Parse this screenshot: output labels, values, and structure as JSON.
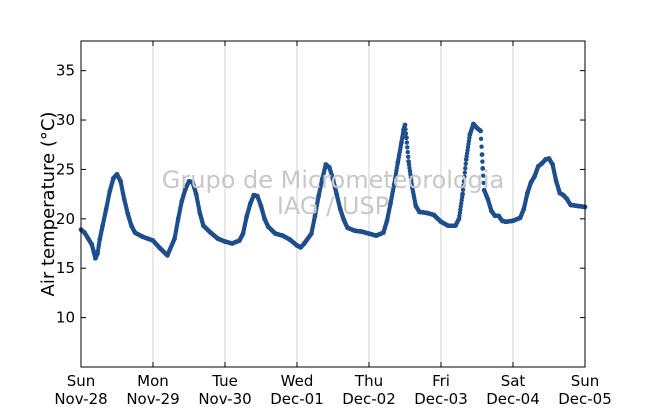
{
  "chart_data": {
    "type": "scatter",
    "title": "",
    "xlabel": "",
    "ylabel": "Air temperature (°C)",
    "ylim": [
      5,
      38
    ],
    "yticks": [
      10,
      15,
      20,
      25,
      30,
      35
    ],
    "xlim_days": [
      0,
      7
    ],
    "xtick_labels": [
      {
        "day": "Sun",
        "date": "Nov-28"
      },
      {
        "day": "Mon",
        "date": "Nov-29"
      },
      {
        "day": "Tue",
        "date": "Nov-30"
      },
      {
        "day": "Wed",
        "date": "Dec-01"
      },
      {
        "day": "Thu",
        "date": "Dec-02"
      },
      {
        "day": "Fri",
        "date": "Dec-03"
      },
      {
        "day": "Sat",
        "date": "Dec-04"
      },
      {
        "day": "Sun",
        "date": "Dec-05"
      }
    ],
    "vertical_grid": true,
    "horizontal_grid": false,
    "marker_color": "#1f4e8c",
    "series": [
      {
        "points": [
          [
            0.0,
            18.9
          ],
          [
            0.05,
            18.6
          ],
          [
            0.1,
            18.0
          ],
          [
            0.15,
            17.4
          ],
          [
            0.18,
            16.6
          ],
          [
            0.2,
            16.0
          ],
          [
            0.23,
            16.5
          ],
          [
            0.26,
            17.9
          ],
          [
            0.3,
            19.3
          ],
          [
            0.35,
            21.0
          ],
          [
            0.4,
            22.8
          ],
          [
            0.45,
            24.1
          ],
          [
            0.5,
            24.5
          ],
          [
            0.55,
            23.8
          ],
          [
            0.6,
            22.0
          ],
          [
            0.65,
            20.5
          ],
          [
            0.7,
            19.3
          ],
          [
            0.75,
            18.6
          ],
          [
            0.85,
            18.2
          ],
          [
            1.0,
            17.8
          ],
          [
            1.1,
            17.0
          ],
          [
            1.2,
            16.3
          ],
          [
            1.3,
            18.0
          ],
          [
            1.35,
            20.0
          ],
          [
            1.4,
            21.8
          ],
          [
            1.45,
            23.0
          ],
          [
            1.5,
            23.8
          ],
          [
            1.55,
            23.7
          ],
          [
            1.6,
            22.5
          ],
          [
            1.65,
            20.6
          ],
          [
            1.7,
            19.3
          ],
          [
            1.8,
            18.6
          ],
          [
            1.9,
            18.0
          ],
          [
            2.0,
            17.7
          ],
          [
            2.1,
            17.5
          ],
          [
            2.2,
            17.8
          ],
          [
            2.25,
            18.5
          ],
          [
            2.3,
            20.2
          ],
          [
            2.35,
            21.5
          ],
          [
            2.4,
            22.4
          ],
          [
            2.45,
            22.3
          ],
          [
            2.5,
            21.3
          ],
          [
            2.55,
            20.0
          ],
          [
            2.6,
            19.2
          ],
          [
            2.7,
            18.5
          ],
          [
            2.8,
            18.3
          ],
          [
            2.9,
            17.9
          ],
          [
            3.0,
            17.3
          ],
          [
            3.05,
            17.1
          ],
          [
            3.1,
            17.5
          ],
          [
            3.2,
            18.5
          ],
          [
            3.25,
            20.3
          ],
          [
            3.3,
            22.3
          ],
          [
            3.35,
            24.0
          ],
          [
            3.4,
            25.5
          ],
          [
            3.45,
            25.2
          ],
          [
            3.5,
            24.0
          ],
          [
            3.55,
            22.5
          ],
          [
            3.6,
            21.0
          ],
          [
            3.65,
            19.9
          ],
          [
            3.7,
            19.1
          ],
          [
            3.8,
            18.8
          ],
          [
            3.9,
            18.7
          ],
          [
            4.0,
            18.5
          ],
          [
            4.1,
            18.3
          ],
          [
            4.2,
            18.6
          ],
          [
            4.25,
            19.8
          ],
          [
            4.3,
            21.6
          ],
          [
            4.35,
            23.5
          ],
          [
            4.4,
            25.7
          ],
          [
            4.45,
            27.7
          ],
          [
            4.48,
            29.0
          ],
          [
            4.5,
            29.5
          ],
          [
            4.52,
            28.2
          ],
          [
            4.55,
            25.8
          ],
          [
            4.6,
            23.2
          ],
          [
            4.65,
            21.3
          ],
          [
            4.7,
            20.7
          ],
          [
            4.8,
            20.6
          ],
          [
            4.9,
            20.4
          ],
          [
            5.0,
            19.7
          ],
          [
            5.1,
            19.3
          ],
          [
            5.2,
            19.3
          ],
          [
            5.25,
            20.0
          ],
          [
            5.3,
            22.5
          ],
          [
            5.35,
            26.0
          ],
          [
            5.4,
            28.5
          ],
          [
            5.45,
            29.6
          ],
          [
            5.5,
            29.2
          ],
          [
            5.55,
            28.9
          ],
          [
            5.57,
            26.5
          ],
          [
            5.58,
            25.1
          ],
          [
            5.6,
            22.9
          ],
          [
            5.65,
            22.0
          ],
          [
            5.7,
            20.8
          ],
          [
            5.75,
            20.3
          ],
          [
            5.8,
            20.3
          ],
          [
            5.85,
            19.8
          ],
          [
            5.9,
            19.7
          ],
          [
            6.0,
            19.8
          ],
          [
            6.1,
            20.1
          ],
          [
            6.15,
            21.0
          ],
          [
            6.2,
            22.6
          ],
          [
            6.25,
            23.7
          ],
          [
            6.3,
            24.3
          ],
          [
            6.35,
            25.3
          ],
          [
            6.4,
            25.6
          ],
          [
            6.45,
            26.0
          ],
          [
            6.5,
            26.1
          ],
          [
            6.55,
            25.5
          ],
          [
            6.6,
            23.8
          ],
          [
            6.65,
            22.6
          ],
          [
            6.7,
            22.4
          ],
          [
            6.75,
            22.0
          ],
          [
            6.8,
            21.4
          ],
          [
            6.9,
            21.3
          ],
          [
            7.0,
            21.2
          ]
        ]
      }
    ]
  },
  "watermark": {
    "line1": "Grupo de Micrometeorologia",
    "line2": "IAG / USP"
  }
}
